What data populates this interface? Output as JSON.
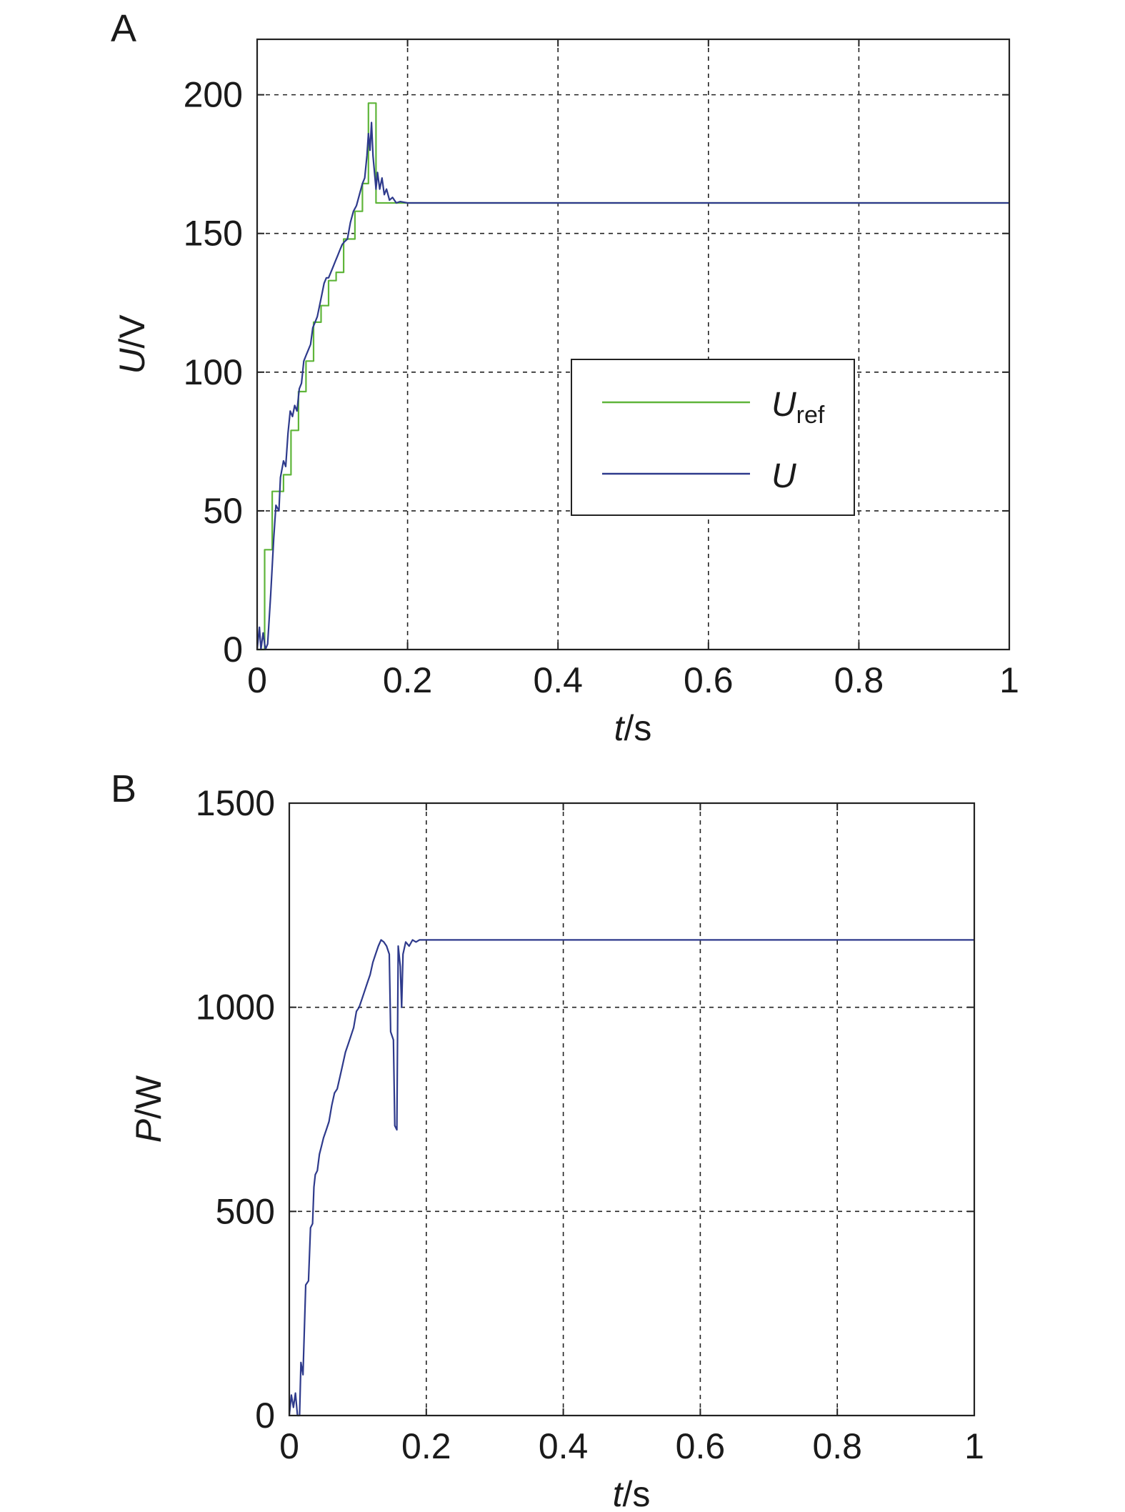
{
  "chart_data": [
    {
      "panel": "A",
      "type": "line",
      "title": "",
      "xlabel": "t/s",
      "ylabel": "U/V",
      "xlim": [
        0,
        1
      ],
      "ylim": [
        0,
        220
      ],
      "xticks": [
        0,
        0.2,
        0.4,
        0.6,
        0.8,
        1
      ],
      "xtick_labels": [
        "0",
        "0.2",
        "0.4",
        "0.6",
        "0.8",
        "1"
      ],
      "yticks": [
        0,
        50,
        100,
        150,
        200
      ],
      "ytick_labels": [
        "0",
        "50",
        "100",
        "150",
        "200"
      ],
      "grid": true,
      "legend_position": "center-right",
      "series": [
        {
          "name": "U_ref",
          "legend_main": "U",
          "legend_sub": "ref",
          "color": "#5fb53a",
          "step": true,
          "points": [
            [
              0,
              0
            ],
            [
              0.01,
              0
            ],
            [
              0.01,
              36
            ],
            [
              0.02,
              36
            ],
            [
              0.02,
              57
            ],
            [
              0.035,
              57
            ],
            [
              0.035,
              63
            ],
            [
              0.045,
              63
            ],
            [
              0.045,
              79
            ],
            [
              0.055,
              79
            ],
            [
              0.055,
              93
            ],
            [
              0.065,
              93
            ],
            [
              0.065,
              104
            ],
            [
              0.075,
              104
            ],
            [
              0.075,
              118
            ],
            [
              0.085,
              118
            ],
            [
              0.085,
              124
            ],
            [
              0.095,
              124
            ],
            [
              0.095,
              133
            ],
            [
              0.105,
              133
            ],
            [
              0.105,
              136
            ],
            [
              0.115,
              136
            ],
            [
              0.115,
              148
            ],
            [
              0.13,
              148
            ],
            [
              0.13,
              158
            ],
            [
              0.14,
              158
            ],
            [
              0.14,
              168
            ],
            [
              0.148,
              168
            ],
            [
              0.148,
              197
            ],
            [
              0.158,
              197
            ],
            [
              0.158,
              161
            ],
            [
              1.0,
              161
            ]
          ]
        },
        {
          "name": "U",
          "legend_main": "U",
          "legend_sub": "",
          "color": "#2e3a8c",
          "step": false,
          "points": [
            [
              0,
              0
            ],
            [
              0.003,
              8
            ],
            [
              0.005,
              0
            ],
            [
              0.008,
              6
            ],
            [
              0.011,
              0
            ],
            [
              0.014,
              2
            ],
            [
              0.018,
              20
            ],
            [
              0.022,
              40
            ],
            [
              0.025,
              52
            ],
            [
              0.029,
              50
            ],
            [
              0.031,
              62
            ],
            [
              0.035,
              68
            ],
            [
              0.038,
              66
            ],
            [
              0.041,
              78
            ],
            [
              0.044,
              86
            ],
            [
              0.047,
              84
            ],
            [
              0.05,
              88
            ],
            [
              0.053,
              86
            ],
            [
              0.056,
              94
            ],
            [
              0.059,
              96
            ],
            [
              0.062,
              104
            ],
            [
              0.065,
              106
            ],
            [
              0.068,
              108
            ],
            [
              0.071,
              110
            ],
            [
              0.074,
              116
            ],
            [
              0.077,
              118
            ],
            [
              0.08,
              120
            ],
            [
              0.083,
              124
            ],
            [
              0.086,
              128
            ],
            [
              0.089,
              132
            ],
            [
              0.092,
              134
            ],
            [
              0.095,
              134
            ],
            [
              0.098,
              136
            ],
            [
              0.101,
              138
            ],
            [
              0.104,
              140
            ],
            [
              0.107,
              142
            ],
            [
              0.11,
              144
            ],
            [
              0.113,
              146
            ],
            [
              0.116,
              147
            ],
            [
              0.12,
              148
            ],
            [
              0.124,
              154
            ],
            [
              0.128,
              158
            ],
            [
              0.132,
              160
            ],
            [
              0.136,
              164
            ],
            [
              0.14,
              168
            ],
            [
              0.143,
              170
            ],
            [
              0.146,
              178
            ],
            [
              0.148,
              186
            ],
            [
              0.15,
              180
            ],
            [
              0.152,
              190
            ],
            [
              0.154,
              178
            ],
            [
              0.156,
              172
            ],
            [
              0.158,
              166
            ],
            [
              0.16,
              172
            ],
            [
              0.163,
              166
            ],
            [
              0.166,
              170
            ],
            [
              0.169,
              164
            ],
            [
              0.172,
              166
            ],
            [
              0.176,
              162
            ],
            [
              0.18,
              163
            ],
            [
              0.185,
              161
            ],
            [
              0.19,
              161.5
            ],
            [
              0.2,
              161
            ],
            [
              0.3,
              161
            ],
            [
              0.4,
              161
            ],
            [
              0.5,
              161
            ],
            [
              0.6,
              161
            ],
            [
              0.7,
              161
            ],
            [
              0.8,
              161
            ],
            [
              0.9,
              161
            ],
            [
              1.0,
              161
            ]
          ]
        }
      ]
    },
    {
      "panel": "B",
      "type": "line",
      "title": "",
      "xlabel": "t/s",
      "ylabel": "P/W",
      "xlim": [
        0,
        1
      ],
      "ylim": [
        0,
        1500
      ],
      "xticks": [
        0,
        0.2,
        0.4,
        0.6,
        0.8,
        1
      ],
      "xtick_labels": [
        "0",
        "0.2",
        "0.4",
        "0.6",
        "0.8",
        "1"
      ],
      "yticks": [
        0,
        500,
        1000,
        1500
      ],
      "ytick_labels": [
        "0",
        "500",
        "1000",
        "1500"
      ],
      "grid": true,
      "series": [
        {
          "name": "",
          "color": "#2e3a8c",
          "step": false,
          "points": [
            [
              0,
              0
            ],
            [
              0.003,
              50
            ],
            [
              0.006,
              20
            ],
            [
              0.009,
              55
            ],
            [
              0.012,
              0
            ],
            [
              0.015,
              0
            ],
            [
              0.017,
              130
            ],
            [
              0.02,
              100
            ],
            [
              0.024,
              320
            ],
            [
              0.028,
              330
            ],
            [
              0.031,
              460
            ],
            [
              0.034,
              470
            ],
            [
              0.036,
              560
            ],
            [
              0.038,
              590
            ],
            [
              0.041,
              600
            ],
            [
              0.044,
              640
            ],
            [
              0.047,
              660
            ],
            [
              0.05,
              680
            ],
            [
              0.054,
              700
            ],
            [
              0.058,
              720
            ],
            [
              0.062,
              760
            ],
            [
              0.066,
              790
            ],
            [
              0.07,
              800
            ],
            [
              0.074,
              830
            ],
            [
              0.078,
              860
            ],
            [
              0.082,
              890
            ],
            [
              0.086,
              910
            ],
            [
              0.09,
              930
            ],
            [
              0.094,
              950
            ],
            [
              0.098,
              990
            ],
            [
              0.102,
              1000
            ],
            [
              0.106,
              1020
            ],
            [
              0.11,
              1040
            ],
            [
              0.114,
              1060
            ],
            [
              0.118,
              1080
            ],
            [
              0.122,
              1110
            ],
            [
              0.126,
              1130
            ],
            [
              0.13,
              1150
            ],
            [
              0.134,
              1165
            ],
            [
              0.138,
              1160
            ],
            [
              0.142,
              1150
            ],
            [
              0.146,
              1130
            ],
            [
              0.148,
              940
            ],
            [
              0.152,
              920
            ],
            [
              0.154,
              710
            ],
            [
              0.157,
              700
            ],
            [
              0.159,
              1150
            ],
            [
              0.162,
              1100
            ],
            [
              0.164,
              1000
            ],
            [
              0.166,
              1130
            ],
            [
              0.17,
              1160
            ],
            [
              0.175,
              1150
            ],
            [
              0.18,
              1165
            ],
            [
              0.185,
              1160
            ],
            [
              0.19,
              1165
            ],
            [
              0.2,
              1165
            ],
            [
              1.0,
              1165
            ]
          ]
        }
      ]
    }
  ]
}
